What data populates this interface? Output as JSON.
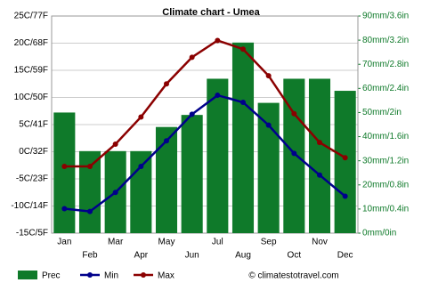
{
  "chart_data": {
    "type": "bar-line",
    "title": "Climate chart - Umea",
    "categories": [
      "Jan",
      "Feb",
      "Mar",
      "Apr",
      "May",
      "Jun",
      "Jul",
      "Aug",
      "Sep",
      "Oct",
      "Nov",
      "Dec"
    ],
    "series": [
      {
        "name": "Prec",
        "type": "bar",
        "axis": "y2",
        "color": "#0f7a2a",
        "values": [
          50,
          34,
          34,
          34,
          44,
          49,
          64,
          79,
          54,
          64,
          64,
          59
        ]
      },
      {
        "name": "Min",
        "type": "line",
        "color": "#00008b",
        "values": [
          -10.5,
          -11,
          -7.5,
          -2.7,
          2,
          6.9,
          10.4,
          9.1,
          4.9,
          -0.3,
          -4.3,
          -8.2
        ]
      },
      {
        "name": "Max",
        "type": "line",
        "color": "#8b0000",
        "values": [
          -2.7,
          -2.7,
          1.4,
          6.4,
          12.5,
          17.4,
          20.5,
          18.9,
          14,
          7,
          1.7,
          -1.1
        ]
      }
    ],
    "ylim": [
      -15,
      25
    ],
    "yticks": [
      {
        "value": -15,
        "label": "-15C/5F"
      },
      {
        "value": -10,
        "label": "-10C/14F"
      },
      {
        "value": -5,
        "label": "-5C/23F"
      },
      {
        "value": 0,
        "label": "0C/32F"
      },
      {
        "value": 5,
        "label": "5C/41F"
      },
      {
        "value": 10,
        "label": "10C/50F"
      },
      {
        "value": 15,
        "label": "15C/59F"
      },
      {
        "value": 20,
        "label": "20C/68F"
      },
      {
        "value": 25,
        "label": "25C/77F"
      }
    ],
    "y2lim": [
      0,
      90
    ],
    "y2ticks": [
      {
        "value": 0,
        "label": "0mm/0in"
      },
      {
        "value": 10,
        "label": "10mm/0.4in"
      },
      {
        "value": 20,
        "label": "20mm/0.8in"
      },
      {
        "value": 30,
        "label": "30mm/1.2in"
      },
      {
        "value": 40,
        "label": "40mm/1.6in"
      },
      {
        "value": 50,
        "label": "50mm/2in"
      },
      {
        "value": 60,
        "label": "60mm/2.4in"
      },
      {
        "value": 70,
        "label": "70mm/2.8in"
      },
      {
        "value": 80,
        "label": "80mm/3.2in"
      },
      {
        "value": 90,
        "label": "90mm/3.6in"
      }
    ],
    "grid": true,
    "credit": "© climatestotravel.com"
  }
}
